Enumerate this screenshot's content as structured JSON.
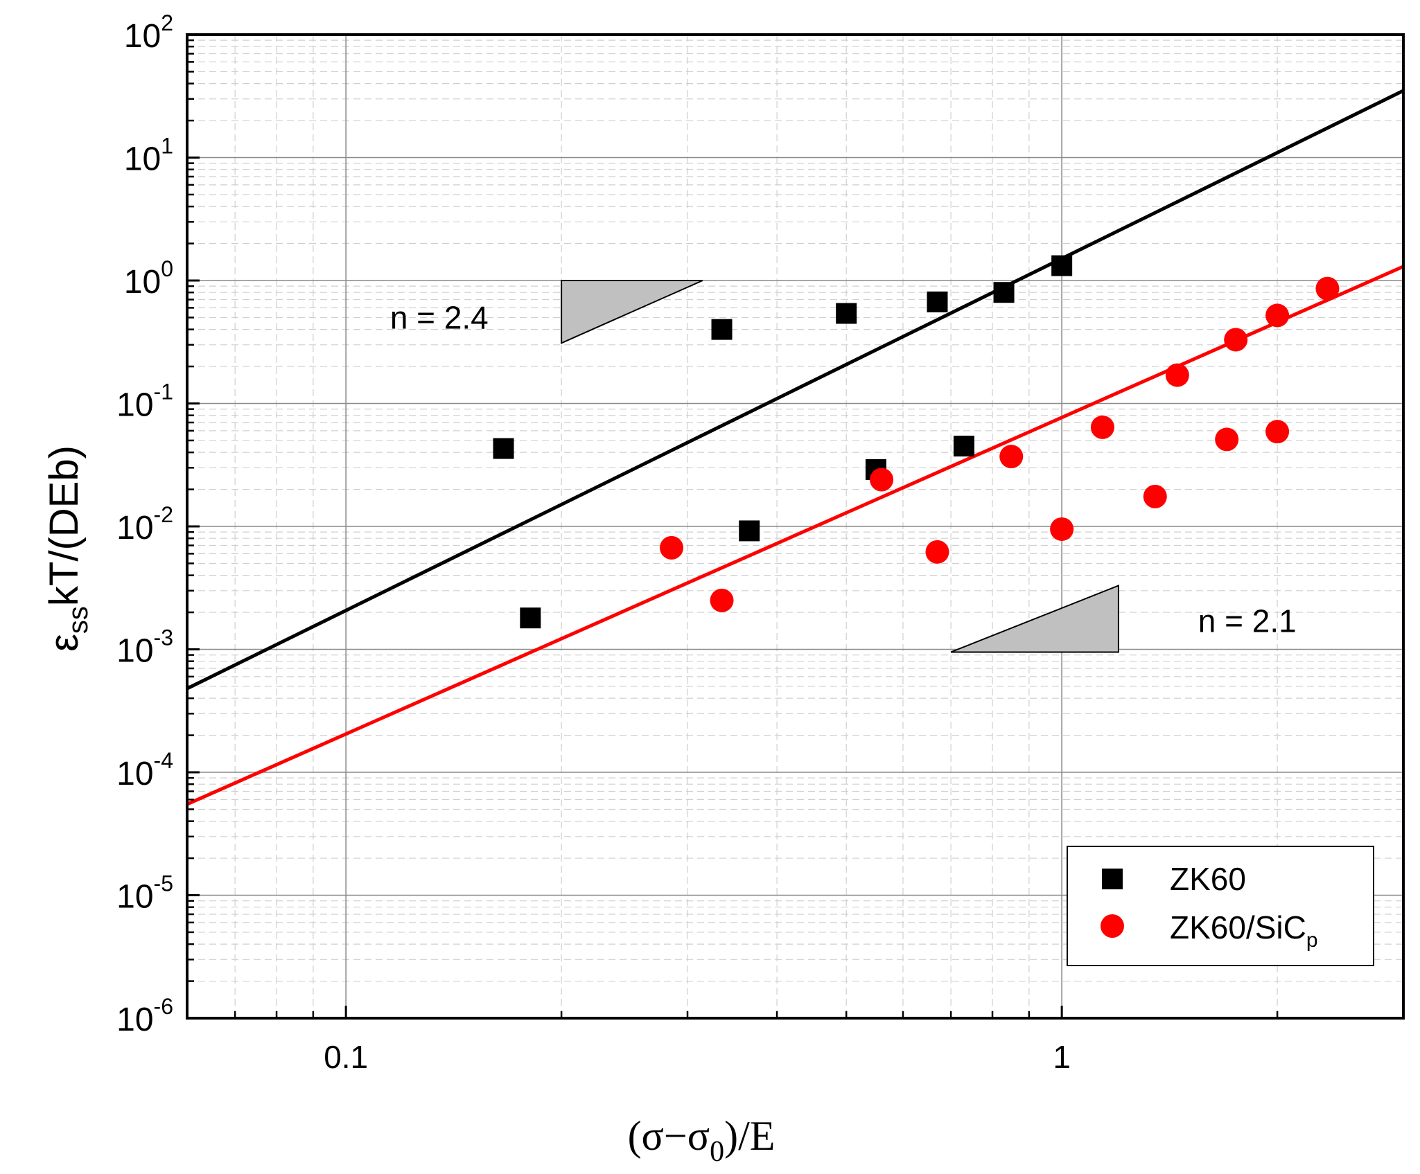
{
  "chart_data": {
    "type": "scatter",
    "x_scale": "log",
    "y_scale": "log",
    "xlim": [
      0.06,
      3.0
    ],
    "ylim": [
      1e-06,
      100
    ],
    "grid": true,
    "legend_position": "bottom-right",
    "xlabel": {
      "prefix": "(σ−σ",
      "subscript": "0",
      "suffix": ")/E"
    },
    "ylabel": {
      "symbol": "ε",
      "subscript": "ss",
      "suffix": "kT/(DEb)"
    },
    "x_ticks": [
      {
        "value": 0.1,
        "label": "0.1"
      },
      {
        "value": 1,
        "label": "1"
      }
    ],
    "y_ticks": [
      {
        "value": 100,
        "base": "10",
        "exp": "2"
      },
      {
        "value": 10,
        "base": "10",
        "exp": "1"
      },
      {
        "value": 1,
        "base": "10",
        "exp": "0"
      },
      {
        "value": 0.1,
        "base": "10",
        "exp": "-1"
      },
      {
        "value": 0.01,
        "base": "10",
        "exp": "-2"
      },
      {
        "value": 0.001,
        "base": "10",
        "exp": "-3"
      },
      {
        "value": 0.0001,
        "base": "10",
        "exp": "-4"
      },
      {
        "value": 1e-05,
        "base": "10",
        "exp": "-5"
      },
      {
        "value": 1e-06,
        "base": "10",
        "exp": "-6"
      }
    ],
    "series": [
      {
        "name": "ZK60",
        "marker": "square",
        "color": "#000000",
        "points": [
          {
            "x": 0.166,
            "y": 0.043
          },
          {
            "x": 0.181,
            "y": 0.0018
          },
          {
            "x": 0.335,
            "y": 0.4
          },
          {
            "x": 0.366,
            "y": 0.0092
          },
          {
            "x": 0.5,
            "y": 0.54
          },
          {
            "x": 0.55,
            "y": 0.029
          },
          {
            "x": 0.67,
            "y": 0.67
          },
          {
            "x": 0.73,
            "y": 0.045
          },
          {
            "x": 0.83,
            "y": 0.8
          },
          {
            "x": 1.0,
            "y": 1.32
          }
        ]
      },
      {
        "name": "ZK60/SiC",
        "name_subscript": "p",
        "marker": "circle",
        "color": "#ff0000",
        "points": [
          {
            "x": 0.285,
            "y": 0.0067
          },
          {
            "x": 0.335,
            "y": 0.0025
          },
          {
            "x": 0.56,
            "y": 0.024
          },
          {
            "x": 0.67,
            "y": 0.0062
          },
          {
            "x": 0.85,
            "y": 0.037
          },
          {
            "x": 1.0,
            "y": 0.0095
          },
          {
            "x": 1.14,
            "y": 0.064
          },
          {
            "x": 1.35,
            "y": 0.0175
          },
          {
            "x": 1.45,
            "y": 0.17
          },
          {
            "x": 1.7,
            "y": 0.051
          },
          {
            "x": 1.75,
            "y": 0.33
          },
          {
            "x": 2.0,
            "y": 0.52
          },
          {
            "x": 2.0,
            "y": 0.059
          },
          {
            "x": 2.35,
            "y": 0.86
          }
        ]
      }
    ],
    "fit_lines": [
      {
        "name": "ZK60 fit",
        "color": "#000000",
        "x": [
          0.06,
          3.0
        ],
        "y": [
          0.00048,
          35
        ]
      },
      {
        "name": "ZK60/SiCp fit",
        "color": "#ff0000",
        "x": [
          0.06,
          3.0
        ],
        "y": [
          5.5e-05,
          1.3
        ]
      }
    ],
    "annotations": [
      {
        "text": "n = 2.4",
        "text_at": {
          "x": 0.135,
          "y": 0.5
        },
        "triangle": [
          {
            "x": 0.2,
            "y": 1.0
          },
          {
            "x": 0.315,
            "y": 1.0
          },
          {
            "x": 0.2,
            "y": 0.31
          }
        ]
      },
      {
        "text": "n = 2.1",
        "text_at": {
          "x": 1.55,
          "y": 0.0017
        },
        "triangle": [
          {
            "x": 0.7,
            "y": 0.00095
          },
          {
            "x": 1.2,
            "y": 0.00095
          },
          {
            "x": 1.2,
            "y": 0.0033
          }
        ]
      }
    ]
  }
}
